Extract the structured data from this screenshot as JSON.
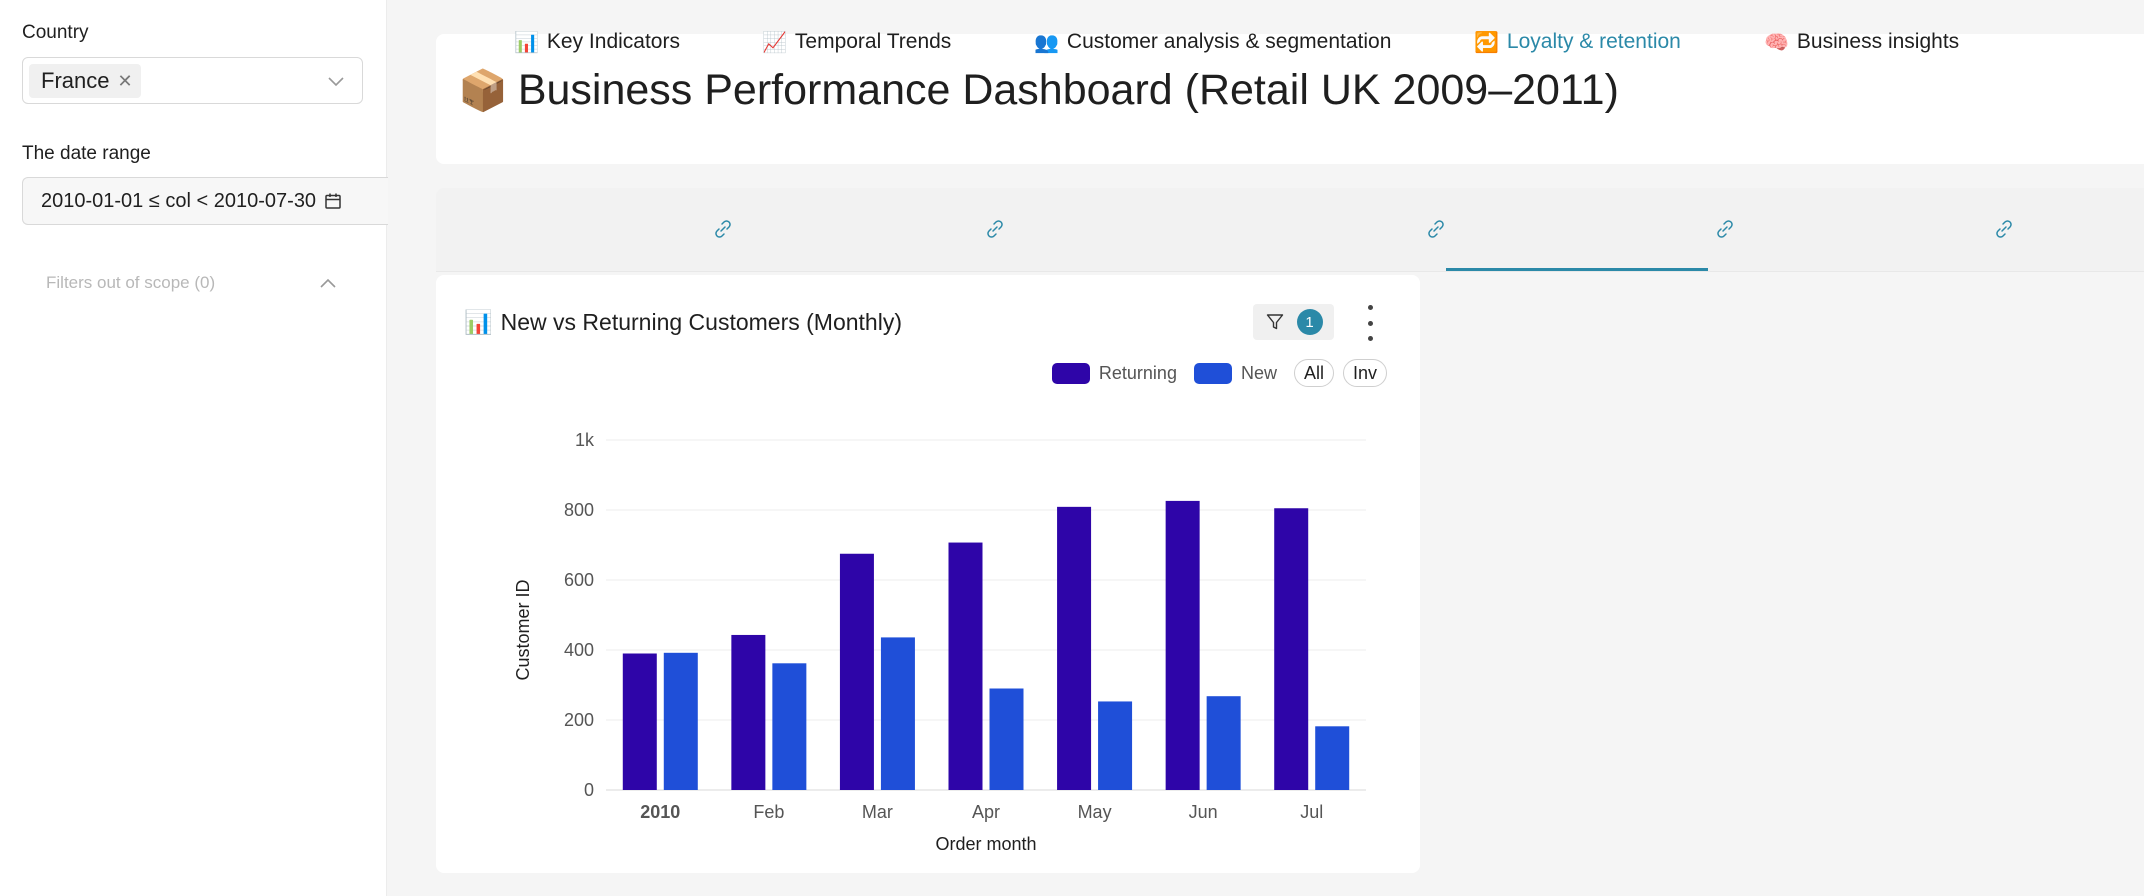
{
  "sidebar": {
    "country_label": "Country",
    "country_value": "France",
    "date_label": "The date range",
    "date_value": "2010-01-01 ≤ col < 2010-07-30",
    "scope_label": "Filters out of scope (0)"
  },
  "header": {
    "title_emoji": "📦",
    "title": "Business Performance Dashboard (Retail UK 2009–2011)"
  },
  "tabs": [
    {
      "emoji": "📊",
      "label": "Key Indicators"
    },
    {
      "emoji": "📈",
      "label": "Temporal Trends"
    },
    {
      "emoji": "👥",
      "label": "Customer analysis & segmentation"
    },
    {
      "emoji": "🔁",
      "label": "Loyalty & retention",
      "active": true
    },
    {
      "emoji": "🧠",
      "label": "Business insights"
    }
  ],
  "chart_card": {
    "title_emoji": "📊",
    "title": "New vs Returning Customers (Monthly)",
    "filter_count": "1",
    "legend_all": "All",
    "legend_inv": "Inv"
  },
  "colors": {
    "returning": "#2e05a8",
    "new": "#1f4fd8",
    "accent": "#2b89a8"
  },
  "chart_data": {
    "type": "bar",
    "categories": [
      "2010",
      "Feb",
      "Mar",
      "Apr",
      "May",
      "Jun",
      "Jul"
    ],
    "series": [
      {
        "name": "Returning",
        "values": [
          390,
          443,
          675,
          707,
          809,
          826,
          805
        ]
      },
      {
        "name": "New",
        "values": [
          392,
          362,
          436,
          290,
          253,
          268,
          182
        ]
      }
    ],
    "xlabel": "Order month",
    "ylabel": "Customer ID",
    "ylim": [
      0,
      1000
    ],
    "yticks": [
      "0",
      "200",
      "400",
      "600",
      "800",
      "1k"
    ],
    "grid": true,
    "legend": "top-right"
  }
}
